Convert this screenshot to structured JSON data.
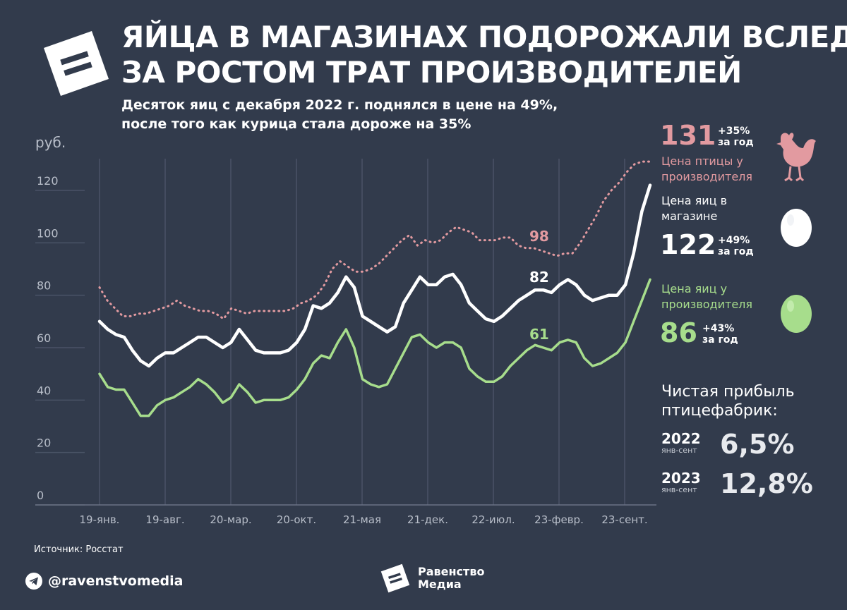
{
  "header": {
    "title_line1": "ЯЙЦА В МАГАЗИНАХ ПОДОРОЖАЛИ ВСЛЕД",
    "title_line2": "ЗА РОСТОМ ТРАТ ПРОИЗВОДИТЕЛЕЙ",
    "subtitle_line1": "Десяток яиц с декабря 2022 г. поднялся в цене на 49%,",
    "subtitle_line2": "после того как курица стала дороже на 35%"
  },
  "annotations": {
    "poultry_value": "131",
    "poultry_change": "+35%",
    "poultry_period": "за год",
    "poultry_label_1": "Цена птицы у",
    "poultry_label_2": "производителя",
    "store_label_1": "Цена яиц в",
    "store_label_2": "магазине",
    "store_value": "122",
    "store_change": "+49%",
    "store_period": "за год",
    "producer_label_1": "Цена яиц у",
    "producer_label_2": "производителя",
    "producer_value": "86",
    "producer_change": "+43%",
    "producer_period": "за год",
    "mid_poultry": "98",
    "mid_store": "82",
    "mid_producer": "61"
  },
  "profit": {
    "title_1": "Чистая прибыль",
    "title_2": "птицефабрик:",
    "rows": [
      {
        "year": "2022",
        "period": "янв-сент",
        "value": "6,5%"
      },
      {
        "year": "2023",
        "period": "янв-сент",
        "value": "12,8%"
      }
    ]
  },
  "footer": {
    "source": "Источник: Росстат",
    "telegram": "@ravenstvomedia",
    "brand_1": "Равенство",
    "brand_2": "Медиа"
  },
  "colors": {
    "background": "#323b4c",
    "store": "#ffffff",
    "producer": "#a7dd8c",
    "poultry": "#e29aa0",
    "grid": "#4a5366",
    "axis_text": "#b8bec9"
  },
  "chart_data": {
    "type": "line",
    "ylabel": "руб.",
    "ylim": [
      0,
      130
    ],
    "yticks": [
      0,
      20,
      40,
      60,
      80,
      100,
      120
    ],
    "x_tick_labels": [
      "19-янв.",
      "19-авг.",
      "20-мар.",
      "20-окт.",
      "21-мая",
      "21-дек.",
      "22-июл.",
      "23-февр.",
      "23-сент."
    ],
    "grid": "vertical",
    "series": [
      {
        "key": "poultry",
        "values": [
          83,
          78,
          75,
          72,
          72,
          73,
          73,
          74,
          75,
          76,
          78,
          76,
          75,
          74,
          74,
          73,
          71,
          75,
          74,
          73,
          74,
          74,
          74,
          74,
          74,
          75,
          77,
          78,
          80,
          84,
          90,
          93,
          91,
          89,
          89,
          90,
          92,
          95,
          98,
          101,
          103,
          99,
          101,
          100,
          101,
          104,
          106,
          105,
          104,
          101,
          101,
          101,
          102,
          102,
          99,
          98,
          98,
          97,
          96,
          95,
          96,
          96,
          100,
          105,
          110,
          116,
          120,
          123,
          127,
          130,
          131,
          131
        ],
        "style": "dotted"
      },
      {
        "key": "store",
        "values": [
          70,
          67,
          65,
          64,
          59,
          55,
          53,
          56,
          58,
          58,
          60,
          62,
          64,
          64,
          62,
          60,
          62,
          67,
          63,
          59,
          58,
          58,
          58,
          59,
          62,
          67,
          76,
          75,
          77,
          81,
          87,
          83,
          72,
          70,
          68,
          66,
          68,
          77,
          82,
          87,
          84,
          84,
          87,
          88,
          84,
          77,
          74,
          71,
          70,
          72,
          75,
          78,
          80,
          82,
          82,
          81,
          84,
          86,
          84,
          80,
          78,
          79,
          80,
          80,
          84,
          96,
          112,
          122
        ],
        "style": "solid"
      },
      {
        "key": "producer",
        "values": [
          50,
          45,
          44,
          44,
          39,
          34,
          34,
          38,
          40,
          41,
          43,
          45,
          48,
          46,
          43,
          39,
          41,
          46,
          43,
          39,
          40,
          40,
          40,
          41,
          44,
          48,
          54,
          57,
          56,
          62,
          67,
          60,
          48,
          46,
          45,
          46,
          52,
          58,
          64,
          65,
          62,
          60,
          62,
          62,
          60,
          52,
          49,
          47,
          47,
          49,
          53,
          56,
          59,
          61,
          60,
          59,
          62,
          63,
          62,
          56,
          53,
          54,
          56,
          58,
          62,
          70,
          78,
          86
        ],
        "style": "solid"
      }
    ]
  }
}
